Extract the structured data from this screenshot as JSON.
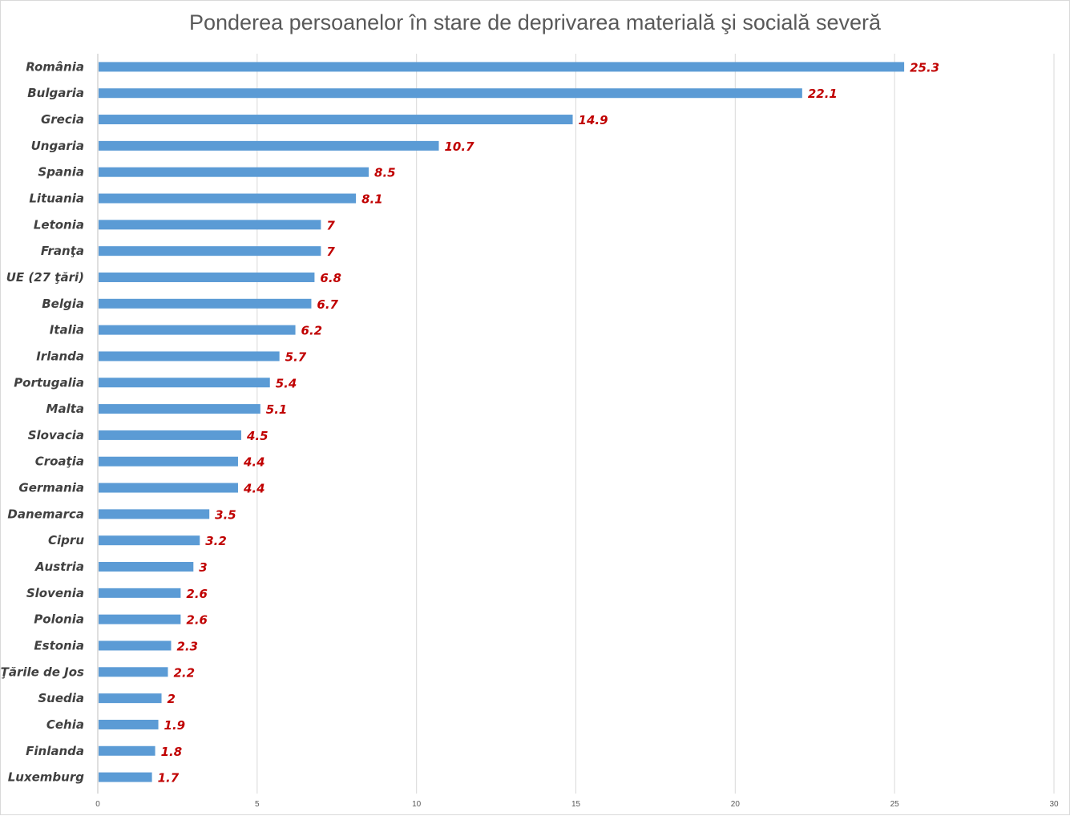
{
  "chart_data": {
    "type": "bar",
    "orientation": "horizontal",
    "title": "Ponderea persoanelor în stare de deprivarea materială şi socială severă",
    "categories": [
      "România",
      "Bulgaria",
      "Grecia",
      "Ungaria",
      "Spania",
      "Lituania",
      "Letonia",
      "Franţa",
      "UE (27 ţări)",
      "Belgia",
      "Italia",
      "Irlanda",
      "Portugalia",
      "Malta",
      "Slovacia",
      "Croaţia",
      "Germania",
      "Danemarca",
      "Cipru",
      "Austria",
      "Slovenia",
      "Polonia",
      "Estonia",
      "Ţările de Jos",
      "Suedia",
      "Cehia",
      "Finlanda",
      "Luxemburg"
    ],
    "values": [
      25.3,
      22.1,
      14.9,
      10.7,
      8.5,
      8.1,
      7,
      7,
      6.8,
      6.7,
      6.2,
      5.7,
      5.4,
      5.1,
      4.5,
      4.4,
      4.4,
      3.5,
      3.2,
      3,
      2.6,
      2.6,
      2.3,
      2.2,
      2,
      1.9,
      1.8,
      1.7
    ],
    "xlim": [
      0,
      30
    ],
    "xticks": [
      0,
      5,
      10,
      15,
      20,
      25,
      30
    ],
    "grid": true,
    "data_labels": true,
    "colors": {
      "bar": "#5b9bd5",
      "data_label": "#c00000",
      "grid": "#d9d9d9"
    }
  }
}
